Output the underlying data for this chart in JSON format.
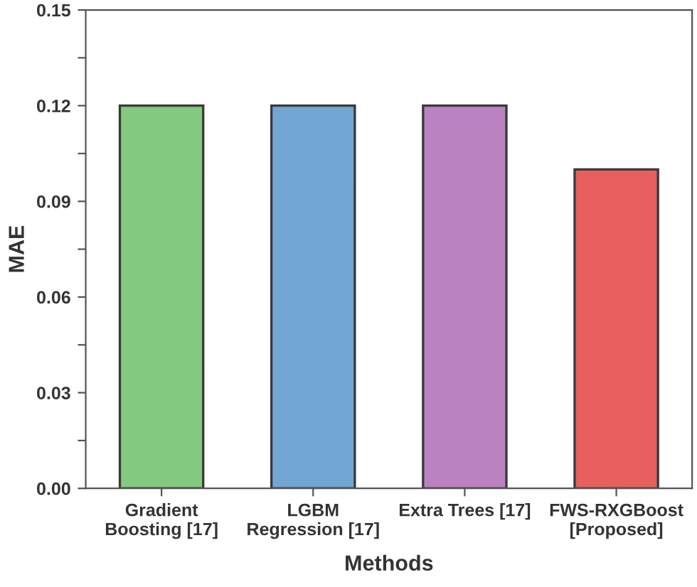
{
  "chart_data": {
    "type": "bar",
    "xlabel": "Methods",
    "ylabel": "MAE",
    "categories": [
      "Gradient\nBoosting [17]",
      "LGBM\nRegression [17]",
      "Extra Trees [17]",
      "FWS-RXGBoost\n[Proposed]"
    ],
    "values": [
      0.12,
      0.12,
      0.12,
      0.1
    ],
    "colors": [
      "#83c97f",
      "#71a6d3",
      "#bb82c2",
      "#e95e5e"
    ],
    "ylim": [
      0,
      0.15
    ],
    "yticks": [
      {
        "value": 0,
        "label": "0.00"
      },
      {
        "value": 0.015,
        "label": null
      },
      {
        "value": 0.03,
        "label": "0.03"
      },
      {
        "value": 0.045,
        "label": null
      },
      {
        "value": 0.06,
        "label": "0.06"
      },
      {
        "value": 0.075,
        "label": null
      },
      {
        "value": 0.09,
        "label": "0.09"
      },
      {
        "value": 0.105,
        "label": null
      },
      {
        "value": 0.12,
        "label": "0.12"
      },
      {
        "value": 0.135,
        "label": null
      },
      {
        "value": 0.15,
        "label": "0.15"
      }
    ],
    "grid": false,
    "legend": false
  }
}
